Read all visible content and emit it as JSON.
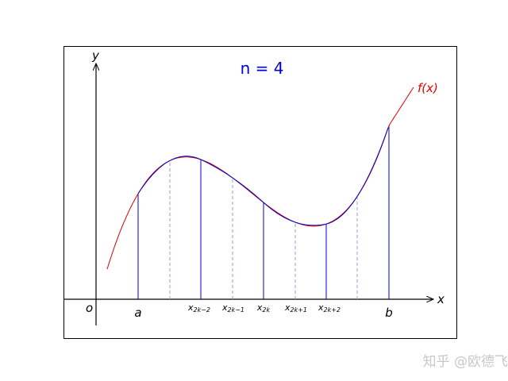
{
  "figure": {
    "title": "n = 4",
    "title_color": "#0000cc",
    "curve_label": "f(x)",
    "curve_color": "#e00000",
    "poly_color": "#0000cc",
    "midline_color": "#9999dd",
    "axis_labels": {
      "x": "x",
      "y": "y",
      "origin": "o"
    },
    "endpoint_labels": {
      "a": "a",
      "b": "b"
    },
    "x_labels": [
      {
        "base": "x",
        "sub": "2k−2"
      },
      {
        "base": "x",
        "sub": "2k−1"
      },
      {
        "base": "x",
        "sub": "2k"
      },
      {
        "base": "x",
        "sub": "2k+1"
      },
      {
        "base": "x",
        "sub": "2k+2"
      }
    ]
  },
  "watermark": "知乎 @欧德飞"
}
